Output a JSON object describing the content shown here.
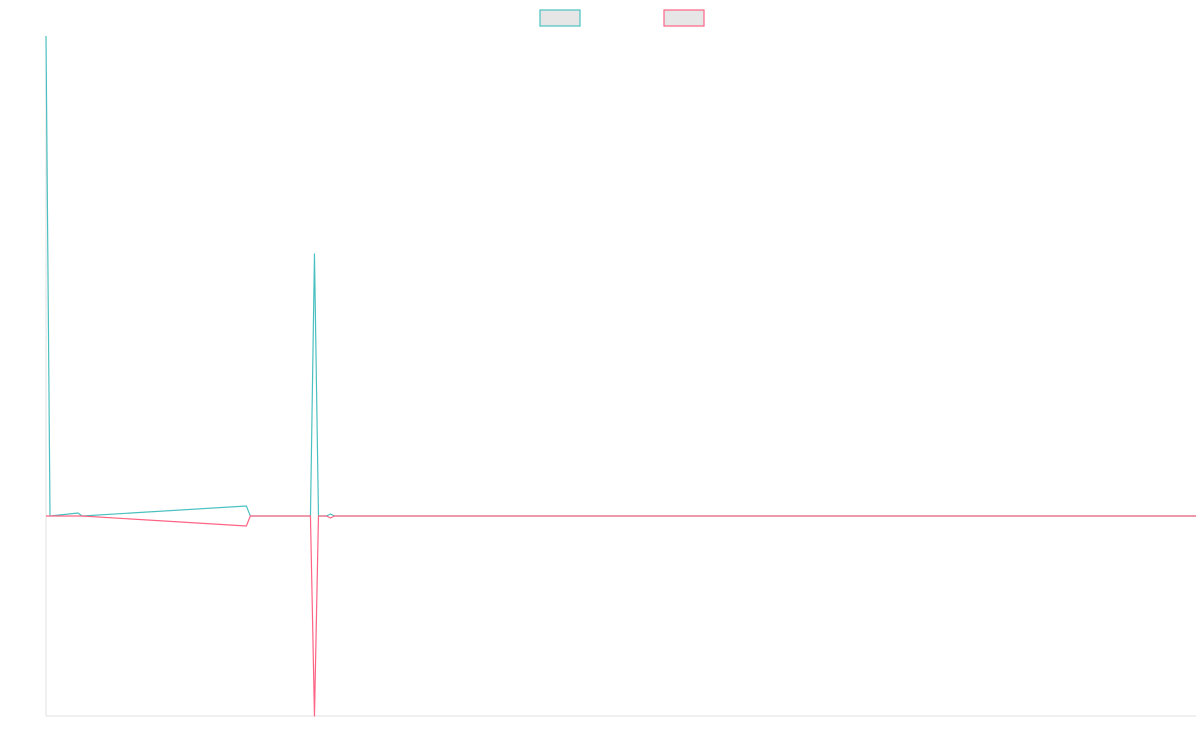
{
  "chart_data": {
    "type": "line",
    "title": "",
    "xlabel": "",
    "ylabel": "",
    "x": [
      0,
      1,
      2,
      3,
      4,
      5,
      6,
      7,
      8,
      9,
      10,
      11,
      12,
      13,
      14,
      15,
      16,
      17,
      18,
      19,
      20,
      21,
      22,
      23,
      24,
      25,
      26,
      27,
      28,
      29,
      30,
      31,
      32,
      33,
      34,
      35,
      36,
      37,
      38,
      39,
      40,
      41,
      42,
      43,
      44,
      45,
      46,
      47,
      48,
      49,
      50,
      51,
      52,
      53,
      54,
      55,
      56,
      57,
      58,
      59,
      60,
      61,
      62,
      63,
      64,
      65,
      66,
      67,
      68,
      69,
      70,
      71,
      72,
      73,
      74,
      75,
      76,
      77,
      78,
      79,
      80,
      81,
      82,
      83,
      84,
      85,
      86,
      87,
      88,
      89,
      90,
      91,
      92,
      93,
      94,
      95,
      96,
      97,
      98,
      99,
      100,
      101,
      102,
      103,
      104,
      105,
      106,
      107,
      108,
      109,
      110,
      111,
      112,
      113,
      114,
      115,
      116,
      117,
      118,
      119,
      120,
      121,
      122,
      123,
      124,
      125,
      126,
      127,
      128,
      129,
      130,
      131,
      132,
      133,
      134,
      135,
      136,
      137,
      138,
      139,
      140,
      141,
      142,
      143,
      144,
      145,
      146,
      147,
      148,
      149,
      150,
      151,
      152,
      153,
      154,
      155,
      156,
      157,
      158,
      159,
      160,
      161,
      162,
      163,
      164,
      165,
      166,
      167,
      168,
      169,
      170,
      171,
      172,
      173,
      174,
      175,
      176,
      177,
      178,
      179,
      180,
      181,
      182,
      183,
      184,
      185,
      186,
      187,
      188,
      189,
      190,
      191,
      192,
      193,
      194,
      195,
      196,
      197,
      198,
      199,
      200,
      201,
      202,
      203,
      204,
      205,
      206,
      207,
      208,
      209,
      210,
      211,
      212,
      213,
      214,
      215,
      216,
      217,
      218,
      219,
      220,
      221,
      222,
      223,
      224,
      225,
      226,
      227,
      228,
      229,
      230,
      231,
      232,
      233,
      234,
      235,
      236,
      237,
      238,
      239,
      240,
      241,
      242,
      243,
      244,
      245,
      246,
      247,
      248,
      249,
      250,
      251,
      252,
      253,
      254,
      255,
      256,
      257,
      258,
      259,
      260,
      261,
      262,
      263,
      264,
      265,
      266,
      267,
      268,
      269,
      270,
      271,
      272,
      273,
      274,
      275,
      276,
      277,
      278,
      279,
      280,
      281,
      282,
      283,
      284,
      285,
      286,
      287
    ],
    "xlim": [
      0,
      287
    ],
    "ylim": [
      -1.0,
      2.4
    ],
    "grid": false,
    "legend": "top-center",
    "series": [
      {
        "name": "",
        "color": "#4bc0c0",
        "points": [
          [
            0,
            2.4
          ],
          [
            1,
            0.0
          ],
          [
            8,
            0.015
          ],
          [
            9,
            0.0
          ],
          [
            50,
            0.05
          ],
          [
            51,
            0.0
          ],
          [
            66,
            0.0
          ],
          [
            67,
            1.31
          ],
          [
            68,
            0.0
          ],
          [
            70,
            0.0
          ],
          [
            71,
            0.01
          ],
          [
            72,
            0.0
          ],
          [
            287,
            0.0
          ]
        ]
      },
      {
        "name": "",
        "color": "#ff6384",
        "points": [
          [
            0,
            0.0
          ],
          [
            8,
            0.0
          ],
          [
            9,
            0.0
          ],
          [
            50,
            -0.05
          ],
          [
            51,
            0.0
          ],
          [
            66,
            0.0
          ],
          [
            67,
            -1.0
          ],
          [
            68,
            0.0
          ],
          [
            70,
            0.0
          ],
          [
            71,
            -0.01
          ],
          [
            72,
            0.0
          ],
          [
            287,
            0.0
          ]
        ]
      }
    ]
  }
}
